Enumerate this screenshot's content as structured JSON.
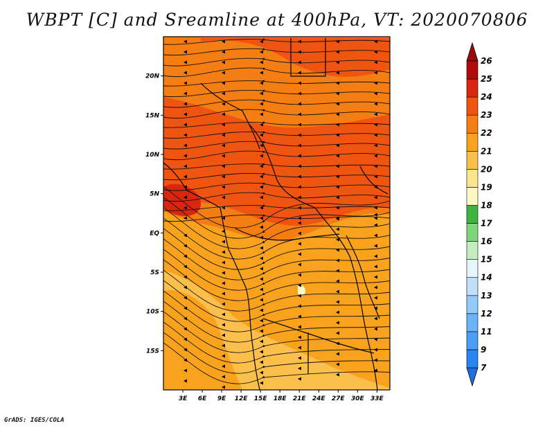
{
  "title": "WBPT [C] and Sreamline at 400hPa, VT: 2020070806",
  "footer": "GrADS: IGES/COLA",
  "map": {
    "lat_labels": [
      "20N",
      "15N",
      "10N",
      "5N",
      "EQ",
      "5S",
      "10S",
      "15S"
    ],
    "lat_values": [
      20,
      15,
      10,
      5,
      0,
      -5,
      -10,
      -15
    ],
    "lon_labels": [
      "3E",
      "6E",
      "9E",
      "12E",
      "15E",
      "18E",
      "21E",
      "24E",
      "27E",
      "30E",
      "33E"
    ],
    "lon_values": [
      3,
      6,
      9,
      12,
      15,
      18,
      21,
      24,
      27,
      30,
      33
    ],
    "lon_range": [
      0,
      35
    ],
    "lat_range": [
      -20,
      25
    ]
  },
  "colorbar": {
    "labels": [
      "7",
      "9",
      "11",
      "12",
      "13",
      "14",
      "15",
      "16",
      "17",
      "18",
      "19",
      "20",
      "21",
      "22",
      "23",
      "24",
      "25",
      "26"
    ],
    "colors": [
      "#1f6fe0",
      "#2a86ee",
      "#4a9ff5",
      "#6ab4f7",
      "#92caf9",
      "#bfe0fb",
      "#e6f4fc",
      "#c3ecbf",
      "#7fd57a",
      "#3fb540",
      "#fff8c4",
      "#fde58f",
      "#fbbf4b",
      "#f9a21d",
      "#f57e12",
      "#ef5410",
      "#d9260e",
      "#b20b0b",
      "#9b0a0a"
    ]
  }
}
